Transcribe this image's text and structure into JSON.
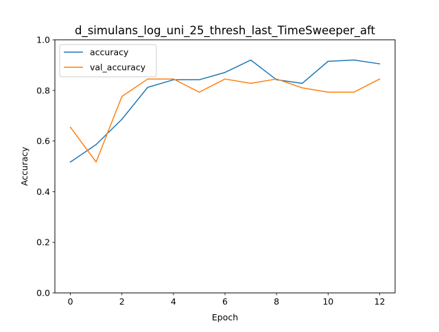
{
  "chart_data": {
    "type": "line",
    "title": "d_simulans_log_uni_25_thresh_last_TimeSweeper_aft",
    "xlabel": "Epoch",
    "ylabel": "Accuracy",
    "xlim": [
      -0.6,
      12.6
    ],
    "ylim": [
      0.0,
      1.0
    ],
    "xticks": [
      0,
      2,
      4,
      6,
      8,
      10,
      12
    ],
    "yticks": [
      0.0,
      0.2,
      0.4,
      0.6,
      0.8,
      1.0
    ],
    "xtick_labels": [
      "0",
      "2",
      "4",
      "6",
      "8",
      "10",
      "12"
    ],
    "ytick_labels": [
      "0.0",
      "0.2",
      "0.4",
      "0.6",
      "0.8",
      "1.0"
    ],
    "grid": false,
    "legend_position": "upper-left",
    "x": [
      0,
      1,
      2,
      3,
      4,
      5,
      6,
      7,
      8,
      9,
      10,
      11,
      12
    ],
    "series": [
      {
        "name": "accuracy",
        "color": "#1f77b4",
        "values": [
          0.517,
          0.586,
          0.686,
          0.812,
          0.842,
          0.842,
          0.871,
          0.92,
          0.842,
          0.828,
          0.915,
          0.92,
          0.905
        ]
      },
      {
        "name": "val_accuracy",
        "color": "#ff7f0e",
        "values": [
          0.655,
          0.517,
          0.776,
          0.845,
          0.845,
          0.793,
          0.845,
          0.828,
          0.845,
          0.81,
          0.793,
          0.793,
          0.845
        ]
      }
    ]
  }
}
